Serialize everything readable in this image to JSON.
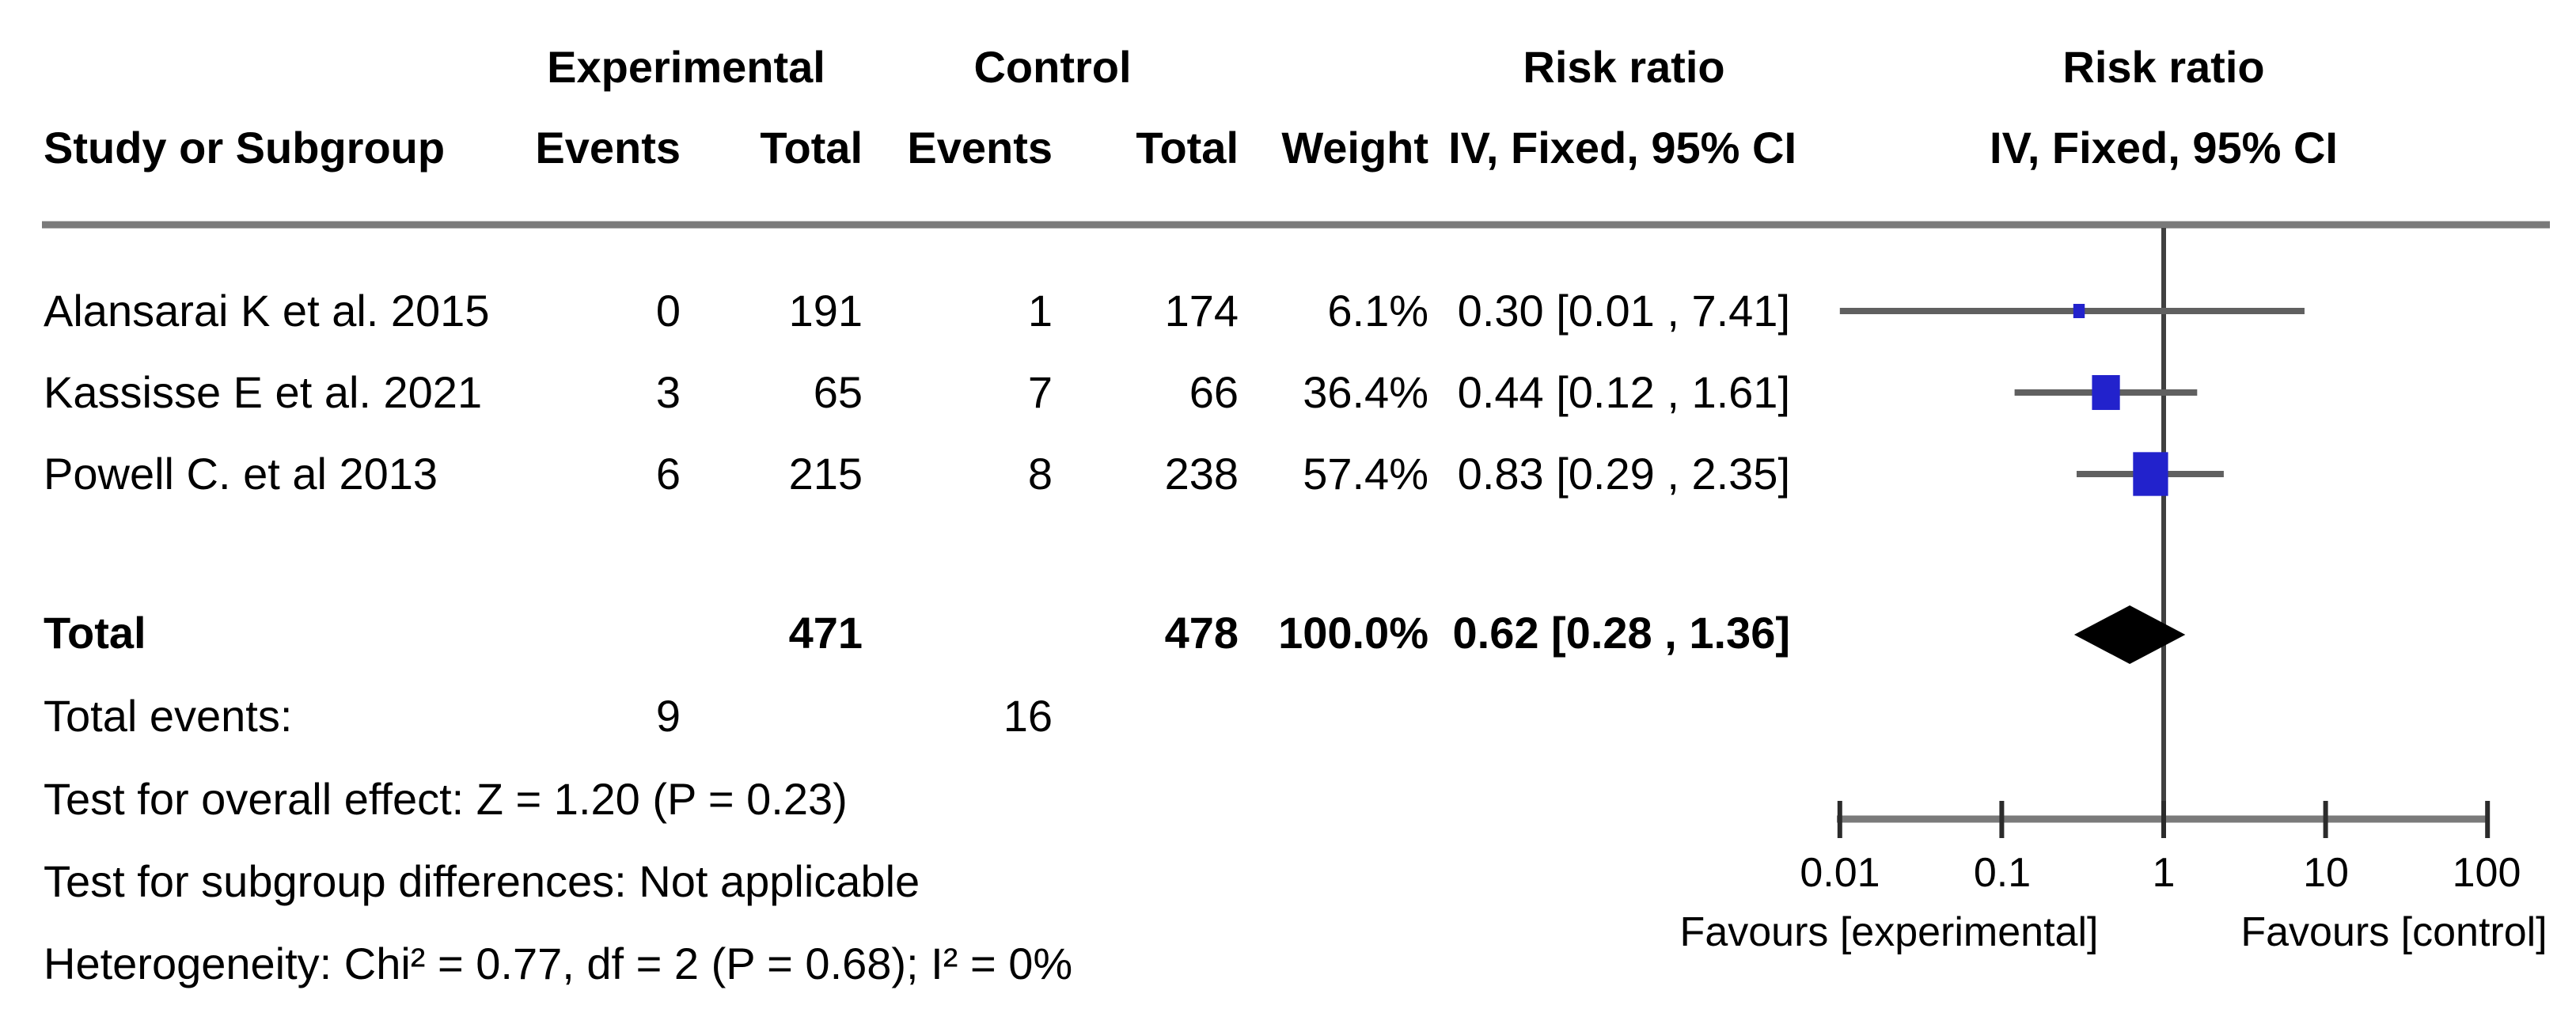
{
  "table": {
    "group_headers": {
      "experimental": "Experimental",
      "control": "Control",
      "risk_ratio": "Risk ratio",
      "risk_ratio_plot": "Risk ratio"
    },
    "col_headers": {
      "study": "Study or Subgroup",
      "exp_events": "Events",
      "exp_total": "Total",
      "ctrl_events": "Events",
      "ctrl_total": "Total",
      "weight": "Weight",
      "ci": "IV, Fixed, 95% CI",
      "ci_plot": "IV, Fixed, 95% CI"
    },
    "rows": [
      {
        "study": "Alansarai K et al. 2015",
        "exp_events": "0",
        "exp_total": "191",
        "ctrl_events": "1",
        "ctrl_total": "174",
        "weight": "6.1%",
        "ci": "0.30 [0.01 , 7.41]"
      },
      {
        "study": "Kassisse E et al. 2021",
        "exp_events": "3",
        "exp_total": "65",
        "ctrl_events": "7",
        "ctrl_total": "66",
        "weight": "36.4%",
        "ci": "0.44 [0.12 , 1.61]"
      },
      {
        "study": "Powell C. et al 2013",
        "exp_events": "6",
        "exp_total": "215",
        "ctrl_events": "8",
        "ctrl_total": "238",
        "weight": "57.4%",
        "ci": "0.83 [0.29 , 2.35]"
      }
    ],
    "total_row": {
      "label": "Total",
      "exp_total": "471",
      "ctrl_total": "478",
      "weight": "100.0%",
      "ci": "0.62 [0.28 , 1.36]"
    },
    "total_events_row": {
      "label": "Total events:",
      "exp": "9",
      "ctrl": "16"
    },
    "footnotes": [
      "Test for overall effect: Z = 1.20 (P = 0.23)",
      "Test for subgroup differences: Not applicable",
      "Heterogeneity: Chi² = 0.77, df = 2 (P = 0.68); I² = 0%"
    ]
  },
  "axis": {
    "tick_labels": [
      "0.01",
      "0.1",
      "1",
      "10",
      "100"
    ],
    "favours_left": "Favours [experimental]",
    "favours_right": "Favours [control]"
  },
  "colors": {
    "marker_blue": "#2222cc",
    "ci_line": "#606060",
    "null_line": "#404040",
    "rule_gray": "#7a7a7a",
    "tick_black": "#2b2b2b",
    "diamond": "#000000"
  },
  "chart_data": {
    "type": "forest",
    "effect_measure": "Risk ratio",
    "model": "IV, Fixed, 95% CI",
    "x_scale": "log10",
    "xlim": [
      0.01,
      100
    ],
    "x_ticks": [
      0.01,
      0.1,
      1,
      10,
      100
    ],
    "null_value": 1,
    "studies": [
      {
        "name": "Alansarai K et al. 2015",
        "exp_events": 0,
        "exp_total": 191,
        "ctrl_events": 1,
        "ctrl_total": 174,
        "weight_pct": 6.1,
        "rr": 0.3,
        "ci_low": 0.01,
        "ci_high": 7.41
      },
      {
        "name": "Kassisse E et al. 2021",
        "exp_events": 3,
        "exp_total": 65,
        "ctrl_events": 7,
        "ctrl_total": 66,
        "weight_pct": 36.4,
        "rr": 0.44,
        "ci_low": 0.12,
        "ci_high": 1.61
      },
      {
        "name": "Powell C. et al 2013",
        "exp_events": 6,
        "exp_total": 215,
        "ctrl_events": 8,
        "ctrl_total": 238,
        "weight_pct": 57.4,
        "rr": 0.83,
        "ci_low": 0.29,
        "ci_high": 2.35
      }
    ],
    "total": {
      "exp_total": 471,
      "ctrl_total": 478,
      "total_events_exp": 9,
      "total_events_ctrl": 16,
      "weight_pct": 100.0,
      "rr": 0.62,
      "ci_low": 0.28,
      "ci_high": 1.36
    },
    "heterogeneity": {
      "chi2": 0.77,
      "df": 2,
      "p": 0.68,
      "i2_pct": 0
    },
    "overall_effect": {
      "z": 1.2,
      "p": 0.23
    },
    "favours": {
      "left": "Favours [experimental]",
      "right": "Favours [control]"
    }
  }
}
